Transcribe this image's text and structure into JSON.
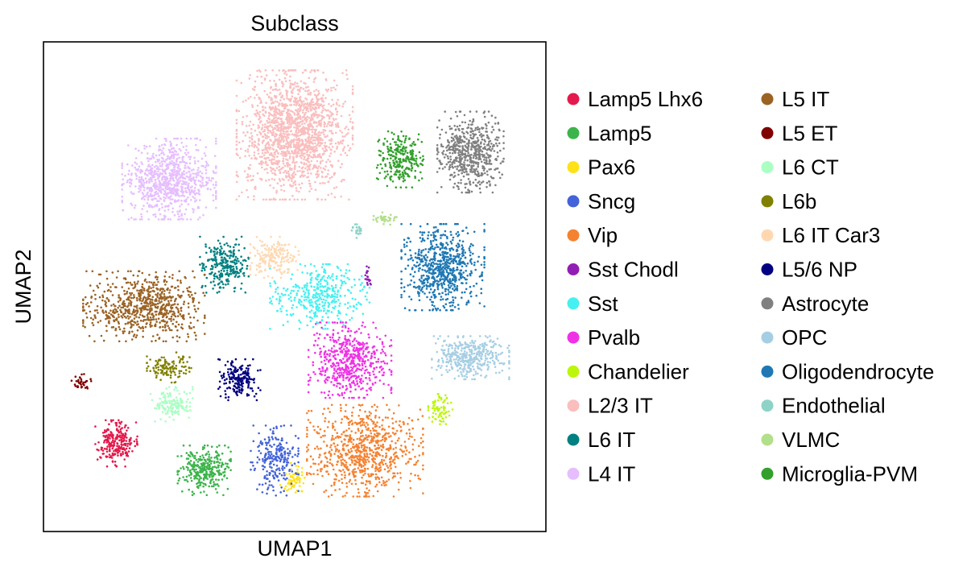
{
  "chart_data": {
    "type": "scatter",
    "title": "Subclass",
    "xlabel": "UMAP1",
    "ylabel": "UMAP2",
    "xlim": [
      0,
      100
    ],
    "ylim": [
      0,
      100
    ],
    "xticks": [],
    "yticks": [],
    "grid": false,
    "legend_position": "right",
    "legend_columns": 2,
    "series": [
      {
        "name": "Lamp5 Lhx6",
        "color": "#e31a4b",
        "count": 240,
        "center": [
          14.5,
          18
        ],
        "spread": [
          3.8,
          4.3
        ]
      },
      {
        "name": "Lamp5",
        "color": "#3cb44b",
        "count": 310,
        "center": [
          32,
          12.5
        ],
        "spread": [
          4.8,
          4.6
        ]
      },
      {
        "name": "Pax6",
        "color": "#ffe119",
        "count": 70,
        "center": [
          50,
          10.5
        ],
        "spread": [
          2.6,
          3.2
        ]
      },
      {
        "name": "Sncg",
        "color": "#4363d8",
        "count": 240,
        "center": [
          46,
          14.5
        ],
        "spread": [
          4.3,
          6.5
        ]
      },
      {
        "name": "Vip",
        "color": "#f58231",
        "count": 780,
        "center": [
          64,
          16.5
        ],
        "spread": [
          10.5,
          8.5
        ]
      },
      {
        "name": "Sst Chodl",
        "color": "#911eb4",
        "count": 20,
        "center": [
          64.5,
          52
        ],
        "spread": [
          0.6,
          2.2
        ]
      },
      {
        "name": "Sst",
        "color": "#46f0f0",
        "count": 380,
        "center": [
          55,
          48
        ],
        "spread": [
          9,
          6
        ]
      },
      {
        "name": "Pvalb",
        "color": "#f032e6",
        "count": 560,
        "center": [
          61,
          35
        ],
        "spread": [
          7.5,
          7
        ]
      },
      {
        "name": "Chandelier",
        "color": "#bcf60c",
        "count": 80,
        "center": [
          79,
          25
        ],
        "spread": [
          2.2,
          2.8
        ]
      },
      {
        "name": "L2/3 IT",
        "color": "#fabebe",
        "count": 1600,
        "center": [
          50,
          81
        ],
        "spread": [
          10.5,
          12
        ]
      },
      {
        "name": "L6 IT",
        "color": "#008080",
        "count": 260,
        "center": [
          36,
          54.5
        ],
        "spread": [
          4.4,
          5.2
        ]
      },
      {
        "name": "L4 IT",
        "color": "#e6beff",
        "count": 820,
        "center": [
          25,
          72
        ],
        "spread": [
          8.5,
          7.5
        ]
      },
      {
        "name": "L5 IT",
        "color": "#9a6324",
        "count": 720,
        "center": [
          20,
          46
        ],
        "spread": [
          11,
          6.5
        ]
      },
      {
        "name": "L5 ET",
        "color": "#800000",
        "count": 35,
        "center": [
          7.5,
          30.5
        ],
        "spread": [
          1.8,
          1.5
        ]
      },
      {
        "name": "L6 CT",
        "color": "#aaffc3",
        "count": 150,
        "center": [
          25.5,
          26
        ],
        "spread": [
          3.8,
          3.2
        ]
      },
      {
        "name": "L6b",
        "color": "#808000",
        "count": 120,
        "center": [
          25,
          33.5
        ],
        "spread": [
          4,
          2.8
        ]
      },
      {
        "name": "L6 IT Car3",
        "color": "#ffd8b1",
        "count": 180,
        "center": [
          46,
          56
        ],
        "spread": [
          4.4,
          3.8
        ]
      },
      {
        "name": "L5/6 NP",
        "color": "#000080",
        "count": 190,
        "center": [
          39,
          31
        ],
        "spread": [
          3.8,
          3.8
        ]
      },
      {
        "name": "Astrocyte",
        "color": "#808080",
        "count": 580,
        "center": [
          85,
          77.5
        ],
        "spread": [
          6,
          7.5
        ]
      },
      {
        "name": "OPC",
        "color": "#a6cee3",
        "count": 400,
        "center": [
          85,
          35.5
        ],
        "spread": [
          7,
          4
        ]
      },
      {
        "name": "Oligodendrocyte",
        "color": "#1f78b4",
        "count": 700,
        "center": [
          79.5,
          54
        ],
        "spread": [
          7.5,
          8
        ]
      },
      {
        "name": "Endothelial",
        "color": "#8dd3c7",
        "count": 25,
        "center": [
          62.5,
          61.5
        ],
        "spread": [
          1.2,
          1.4
        ]
      },
      {
        "name": "VLMC",
        "color": "#b2df8a",
        "count": 35,
        "center": [
          68,
          64
        ],
        "spread": [
          2.8,
          1.2
        ]
      },
      {
        "name": "Microglia-PVM",
        "color": "#33a02c",
        "count": 260,
        "center": [
          71,
          76
        ],
        "spread": [
          4.2,
          5.2
        ]
      }
    ]
  }
}
